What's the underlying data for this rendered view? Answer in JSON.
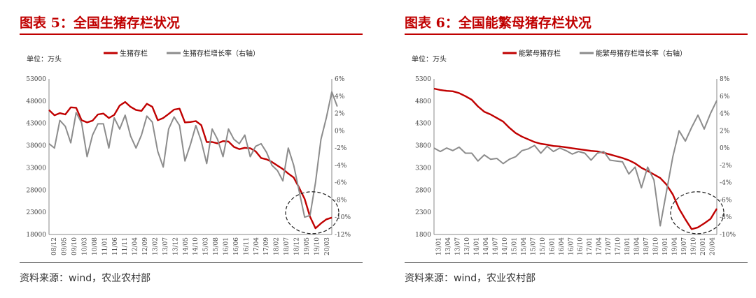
{
  "charts": [
    {
      "id": "c1",
      "title": "图表 5：全国生猪存栏状况",
      "source": "资料来源：wind，农业农村部",
      "chart_data": {
        "type": "line",
        "unit_label": "单位：万头",
        "colors": {
          "primary": "#c00000",
          "secondary": "#8c8c8c"
        },
        "series": [
          {
            "name": "生猪存栏",
            "axis": "left",
            "color": "#c00000",
            "x": [
              0,
              2,
              4,
              6,
              8,
              10,
              12,
              14,
              16,
              18,
              20,
              22,
              24,
              26,
              28,
              30,
              32,
              34,
              36,
              38,
              40,
              42,
              44,
              46,
              48,
              50,
              52,
              54,
              56,
              58,
              60,
              62,
              64,
              66,
              68,
              70,
              72,
              74,
              76,
              78,
              80,
              82,
              84,
              86,
              88,
              90,
              92,
              94,
              96,
              98,
              100,
              102,
              104,
              106,
              108,
              110,
              112,
              114,
              116,
              118,
              120,
              122,
              124,
              126,
              128,
              130,
              132,
              134,
              136,
              138
            ],
            "values": [
              46000,
              44800,
              45300,
              45000,
              46600,
              46500,
              43700,
              43200,
              43600,
              45000,
              45200,
              44200,
              44900,
              47000,
              47800,
              46700,
              46000,
              45800,
              47400,
              46700,
              43700,
              44200,
              45100,
              46100,
              46300,
              43200,
              43300,
              43500,
              42600,
              38800,
              38800,
              38500,
              39000,
              38900,
              37700,
              37200,
              37500,
              37400,
              36700,
              35200,
              34900,
              34300,
              33500,
              32700,
              31700,
              30800,
              28500,
              26000,
              22000,
              19400,
              20500,
              21400,
              21800,
              null,
              null,
              null,
              null,
              null,
              null,
              null,
              null,
              null,
              null,
              null,
              null,
              null,
              null,
              null,
              null,
              null
            ]
          },
          {
            "name": "生猪存栏增长率（右轴）",
            "axis": "right",
            "color": "#8c8c8c",
            "x": [
              0,
              2,
              4,
              6,
              8,
              10,
              12,
              14,
              16,
              18,
              20,
              22,
              24,
              26,
              28,
              30,
              32,
              34,
              36,
              38,
              40,
              42,
              44,
              46,
              48,
              50,
              52,
              54,
              56,
              58,
              60,
              62,
              64,
              66,
              68,
              70,
              72,
              74,
              76,
              78,
              80,
              82,
              84,
              86,
              88,
              90,
              92,
              94,
              96,
              98,
              100,
              102,
              104,
              106,
              108,
              110,
              112,
              114,
              116,
              118,
              120,
              122,
              124,
              126,
              128,
              130,
              132,
              134,
              136,
              138
            ],
            "values": [
              -1.5,
              -2,
              1.2,
              0.5,
              -1.4,
              2.1,
              0.9,
              -3,
              -0.5,
              0.8,
              0.8,
              -2,
              1.5,
              0.2,
              1.8,
              -0.6,
              -2,
              -0.5,
              1.7,
              1,
              -2.4,
              -4.2,
              0.2,
              1.6,
              0.6,
              -3.5,
              -1.6,
              0.6,
              -1.2,
              -3.8,
              0.2,
              -1,
              -3,
              0.2,
              -1,
              -1.5,
              -0.5,
              -3,
              -1.8,
              -1.5,
              -2.5,
              -4,
              -4.6,
              -5.8,
              -2,
              -4,
              -7,
              -10,
              -9.8,
              -6,
              -1,
              1.5,
              4.5,
              2.8,
              null,
              null,
              null,
              null,
              null,
              null,
              null,
              null,
              null,
              null,
              null,
              null,
              null,
              null,
              null,
              null
            ]
          }
        ],
        "x_tick_labels": [
          "08/12",
          "09/05",
          "09/10",
          "10/03",
          "10/08",
          "11/01",
          "11/06",
          "11/11",
          "12/04",
          "12/09",
          "13/02",
          "13/07",
          "13/12",
          "14/05",
          "14/10",
          "15/03",
          "15/08",
          "16/01",
          "16/06",
          "16/11",
          "17/04",
          "17/09",
          "18/02",
          "18/07",
          "18/12",
          "19/05",
          "19/10",
          "20/03"
        ],
        "y_left": {
          "min": 18000,
          "max": 53000,
          "ticks": [
            "18000",
            "23000",
            "28000",
            "33000",
            "38000",
            "43000",
            "48000",
            "53000"
          ]
        },
        "y_right": {
          "min": -12,
          "max": 6,
          "ticks": [
            "-12%",
            "-10%",
            "-8%",
            "-6%",
            "-4%",
            "-2%",
            "0%",
            "2%",
            "4%",
            "6%"
          ]
        },
        "annotation": "dashed circle around latest values",
        "grid": false,
        "legend": "top"
      }
    },
    {
      "id": "c2",
      "title": "图表 6：全国能繁母猪存栏状况",
      "source": "资料来源：wind，农业农村部",
      "chart_data": {
        "type": "line",
        "unit_label": "单位：万头",
        "colors": {
          "primary": "#c00000",
          "secondary": "#8c8c8c"
        },
        "series": [
          {
            "name": "能繁母猪存栏",
            "axis": "left",
            "color": "#c00000",
            "x": [
              0,
              2,
              4,
              6,
              8,
              10,
              12,
              14,
              16,
              18,
              20,
              22,
              24,
              26,
              28,
              30,
              32,
              34,
              36,
              38,
              40,
              42,
              44,
              46,
              48,
              50,
              52,
              54,
              56,
              58,
              60,
              62,
              64,
              66,
              68,
              70,
              72,
              74,
              76,
              78,
              80,
              82,
              84,
              86,
              88,
              90
            ],
            "values": [
              5080,
              5050,
              5030,
              5020,
              4980,
              4910,
              4830,
              4680,
              4560,
              4500,
              4420,
              4340,
              4200,
              4080,
              4000,
              3940,
              3880,
              3840,
              3820,
              3790,
              3780,
              3760,
              3740,
              3720,
              3700,
              3680,
              3670,
              3640,
              3600,
              3560,
              3520,
              3470,
              3400,
              3300,
              3230,
              3150,
              3070,
              2920,
              2700,
              2380,
              2140,
              1920,
              1960,
              2050,
              2150,
              2380
            ]
          },
          {
            "name": "能繁母猪存栏增长率（右轴）",
            "axis": "right",
            "color": "#8c8c8c",
            "x": [
              0,
              2,
              4,
              6,
              8,
              10,
              12,
              14,
              16,
              18,
              20,
              22,
              24,
              26,
              28,
              30,
              32,
              34,
              36,
              38,
              40,
              42,
              44,
              46,
              48,
              50,
              52,
              54,
              56,
              58,
              60,
              62,
              64,
              66,
              68,
              70,
              72,
              74,
              76,
              78,
              80,
              82,
              84,
              86,
              88,
              90
            ],
            "values": [
              0,
              -0.4,
              0,
              -0.3,
              0.1,
              -0.6,
              -0.6,
              -1.5,
              -0.8,
              -1.3,
              -1.2,
              -1.8,
              -1.3,
              -1,
              -0.3,
              -0.1,
              0.3,
              -0.6,
              0.2,
              -0.4,
              0,
              -0.3,
              -0.7,
              -0.4,
              -0.6,
              -1.4,
              -0.6,
              -0.4,
              -1.4,
              -1.5,
              -1.6,
              -3,
              -2.2,
              -4.6,
              -2.2,
              -3.7,
              -9,
              -5,
              -1,
              2,
              0.8,
              2.4,
              3.8,
              2.2,
              4,
              5.5
            ]
          }
        ],
        "x_tick_labels": [
          "13/01",
          "13/04",
          "13/07",
          "13/10",
          "14/01",
          "14/04",
          "14/07",
          "14/10",
          "15/01",
          "15/04",
          "15/07",
          "15/10",
          "16/01",
          "16/04",
          "16/07",
          "16/10",
          "17/01",
          "17/04",
          "17/07",
          "17/10",
          "18/01",
          "18/04",
          "18/07",
          "18/10",
          "19/01",
          "19/04",
          "19/07",
          "19/10",
          "20/01",
          "20/04"
        ],
        "y_left": {
          "min": 1800,
          "max": 5300,
          "ticks": [
            "1800",
            "2300",
            "2800",
            "3300",
            "3800",
            "4300",
            "4800",
            "5300"
          ]
        },
        "y_right": {
          "min": -10,
          "max": 8,
          "ticks": [
            "-10%",
            "-8%",
            "-6%",
            "-4%",
            "-2%",
            "0%",
            "2%",
            "4%",
            "6%",
            "8%"
          ]
        },
        "annotation": "dashed circle around latest values",
        "grid": false,
        "legend": "top"
      }
    }
  ]
}
